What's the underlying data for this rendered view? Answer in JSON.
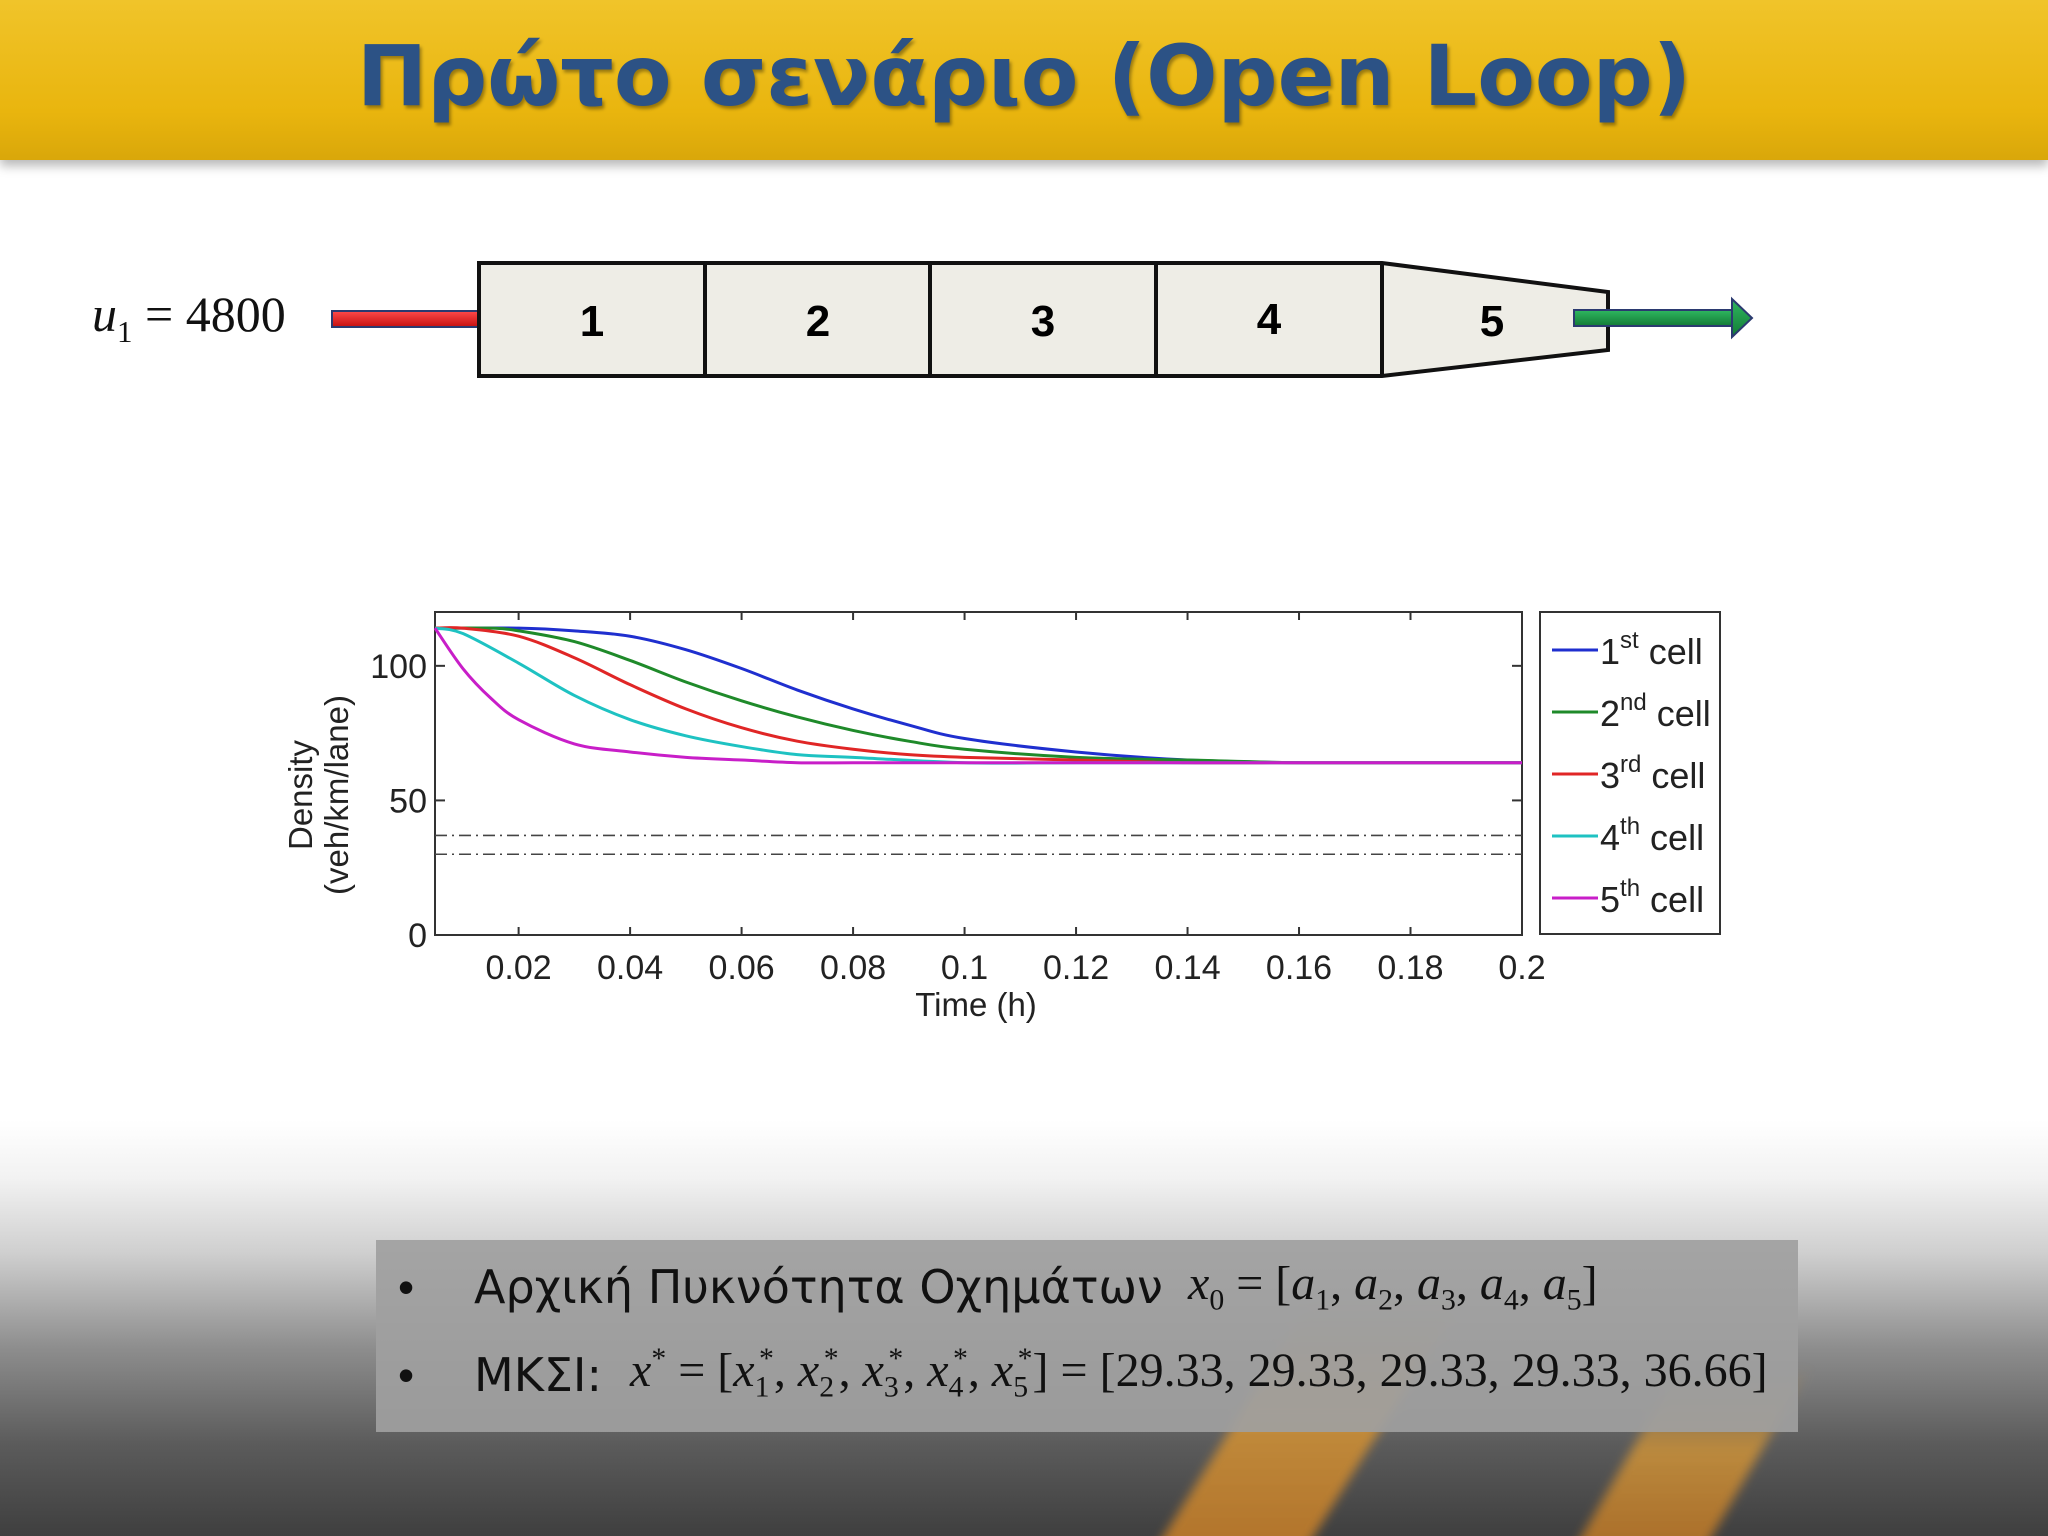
{
  "slide": {
    "title": "Πρώτο σενάριο (Open Loop)"
  },
  "road": {
    "inflow": {
      "var": "u",
      "sub": "1",
      "value": "4800"
    },
    "cells": [
      "1",
      "2",
      "3",
      "4",
      "5"
    ],
    "colors": {
      "inflow_arrow": "#e81818",
      "outflow_arrow": "#1e9a48",
      "cell_fill": "#eeede6"
    }
  },
  "chart_data": {
    "type": "line",
    "xlabel": "Time (h)",
    "ylabel_lines": [
      "Density",
      "(veh/km/lane)"
    ],
    "xlim": [
      0.005,
      0.2
    ],
    "ylim": [
      0,
      120
    ],
    "xticks": [
      "0.02",
      "0.04",
      "0.06",
      "0.08",
      "0.1",
      "0.12",
      "0.14",
      "0.16",
      "0.18",
      "0.2"
    ],
    "yticks": [
      "0",
      "50",
      "100"
    ],
    "grid": false,
    "legend_placement": "outside-right",
    "series": [
      {
        "name": "1st cell",
        "sup": "st",
        "num": "1",
        "color": "#1f2fcf",
        "x": [
          0.005,
          0.02,
          0.03,
          0.04,
          0.05,
          0.06,
          0.07,
          0.08,
          0.09,
          0.1,
          0.12,
          0.14,
          0.16,
          0.18,
          0.2
        ],
        "y": [
          114,
          114,
          113,
          111,
          106,
          99,
          91,
          84,
          78,
          73,
          68,
          65,
          64,
          64,
          64
        ]
      },
      {
        "name": "2nd cell",
        "sup": "nd",
        "num": "2",
        "color": "#1f8a2a",
        "x": [
          0.005,
          0.015,
          0.02,
          0.03,
          0.04,
          0.05,
          0.06,
          0.07,
          0.08,
          0.09,
          0.1,
          0.12,
          0.14,
          0.16,
          0.18,
          0.2
        ],
        "y": [
          114,
          114,
          113,
          109,
          102,
          94,
          87,
          81,
          76,
          72,
          69,
          66,
          65,
          64,
          64,
          64
        ]
      },
      {
        "name": "3rd cell",
        "sup": "rd",
        "num": "3",
        "color": "#e02626",
        "x": [
          0.005,
          0.01,
          0.02,
          0.03,
          0.04,
          0.05,
          0.06,
          0.07,
          0.08,
          0.09,
          0.1,
          0.12,
          0.14,
          0.16,
          0.18,
          0.2
        ],
        "y": [
          114,
          114,
          111,
          103,
          93,
          84,
          77,
          72,
          69,
          67,
          66,
          65,
          64,
          64,
          64,
          64
        ]
      },
      {
        "name": "4th cell",
        "sup": "th",
        "num": "4",
        "color": "#1ec2c2",
        "x": [
          0.005,
          0.01,
          0.02,
          0.03,
          0.04,
          0.05,
          0.06,
          0.07,
          0.08,
          0.1,
          0.12,
          0.14,
          0.16,
          0.18,
          0.2
        ],
        "y": [
          114,
          112,
          101,
          89,
          80,
          74,
          70,
          67,
          66,
          64,
          64,
          64,
          64,
          64,
          64
        ]
      },
      {
        "name": "5th cell",
        "sup": "th",
        "num": "5",
        "color": "#c81ec8",
        "x": [
          0.005,
          0.01,
          0.015,
          0.02,
          0.03,
          0.04,
          0.05,
          0.06,
          0.07,
          0.08,
          0.1,
          0.12,
          0.14,
          0.16,
          0.18,
          0.2
        ],
        "y": [
          114,
          99,
          88,
          80,
          71,
          68,
          66,
          65,
          64,
          64,
          64,
          64,
          64,
          64,
          64,
          64
        ]
      }
    ],
    "reference_lines": [
      {
        "y": 37,
        "style": "dash-dot"
      },
      {
        "y": 30,
        "style": "dash-dot"
      }
    ]
  },
  "info": {
    "bullet": "•",
    "line1_text": "Αρχική Πυκνότητα Οχημάτων",
    "line1_math": {
      "lhs_var": "x",
      "lhs_sub": "0",
      "eq": "=",
      "vars": [
        "a1",
        "a2",
        "a3",
        "a4",
        "a5"
      ]
    },
    "line2_text": "ΜΚΣΙ:",
    "line2_math": {
      "lhs": "x*",
      "components": [
        "x1*",
        "x2*",
        "x3*",
        "x4*",
        "x5*"
      ],
      "values": "[29.33, 29.33, 29.33, 29.33, 36.66]"
    }
  }
}
